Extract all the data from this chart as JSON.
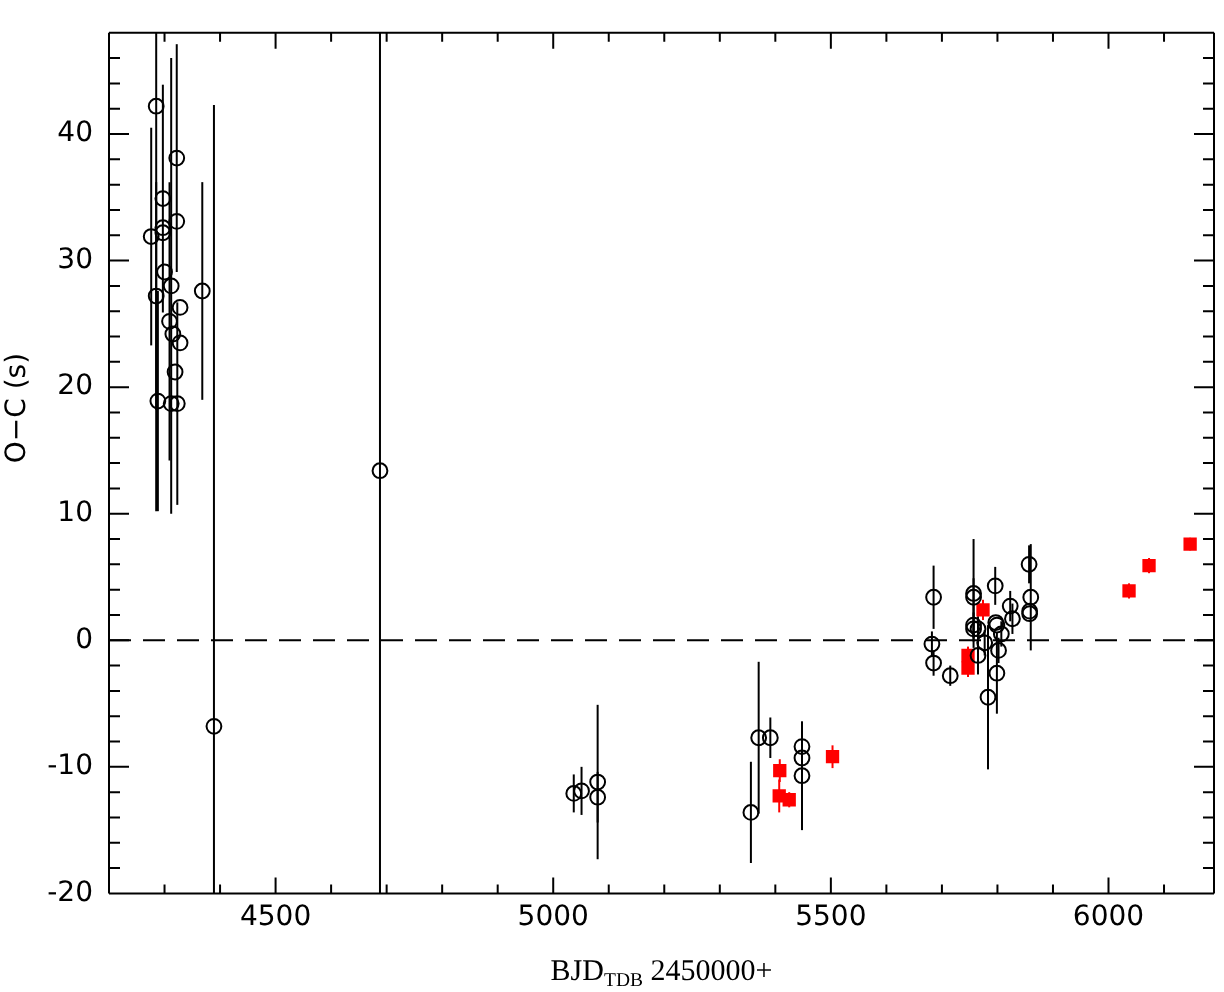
{
  "chart_data": {
    "type": "scatter",
    "xlabel": "BJD$_{TDB}$ 2450000+",
    "ylabel": "O−C (s)",
    "xlim": [
      4200,
      6190
    ],
    "ylim": [
      -20,
      48
    ],
    "xticks": [
      {
        "value": 4300,
        "label": null
      },
      {
        "value": 4400,
        "label": null
      },
      4500,
      {
        "value": 4600,
        "label": null
      },
      {
        "value": 4700,
        "label": null
      },
      {
        "value": 4800,
        "label": null
      },
      {
        "value": 4900,
        "label": null
      },
      5000,
      {
        "value": 5100,
        "label": null
      },
      {
        "value": 5200,
        "label": null
      },
      {
        "value": 5300,
        "label": null
      },
      {
        "value": 5400,
        "label": null
      },
      5500,
      {
        "value": 5600,
        "label": null
      },
      {
        "value": 5700,
        "label": null
      },
      {
        "value": 5800,
        "label": null
      },
      {
        "value": 5900,
        "label": null
      },
      6000,
      {
        "value": 6100,
        "label": null
      }
    ],
    "yticks": [
      -20,
      {
        "value": -18,
        "label": null
      },
      {
        "value": -16,
        "label": null
      },
      {
        "value": -14,
        "label": null
      },
      {
        "value": -12,
        "label": null
      },
      -10,
      {
        "value": -8,
        "label": null
      },
      {
        "value": -6,
        "label": null
      },
      {
        "value": -4,
        "label": null
      },
      {
        "value": -2,
        "label": null
      },
      0,
      {
        "value": 2,
        "label": null
      },
      {
        "value": 4,
        "label": null
      },
      {
        "value": 6,
        "label": null
      },
      {
        "value": 8,
        "label": null
      },
      10,
      {
        "value": 12,
        "label": null
      },
      {
        "value": 14,
        "label": null
      },
      {
        "value": 16,
        "label": null
      },
      {
        "value": 18,
        "label": null
      },
      20,
      {
        "value": 22,
        "label": null
      },
      {
        "value": 24,
        "label": null
      },
      {
        "value": 26,
        "label": null
      },
      {
        "value": 28,
        "label": null
      },
      30,
      {
        "value": 32,
        "label": null
      },
      {
        "value": 34,
        "label": null
      },
      {
        "value": 36,
        "label": null
      },
      {
        "value": 38,
        "label": null
      },
      40,
      {
        "value": 42,
        "label": null
      },
      {
        "value": 44,
        "label": null
      },
      {
        "value": 46,
        "label": null
      }
    ],
    "ref_lines": [
      {
        "axis": "y",
        "value": 0,
        "color": "#000000",
        "line_style": "dashed"
      }
    ],
    "series": [
      {
        "color": "#000000",
        "marker": "circle",
        "x": [
          4285,
          4322,
          4297,
          4322,
          4297,
          4297,
          4276,
          4300,
          4312,
          4285,
          4368,
          4328,
          4309,
          4315,
          4328,
          4319,
          4288,
          4312,
          4323,
          4389,
          4688,
          5037,
          5051,
          5080,
          5080,
          5356,
          5370,
          5391,
          5448,
          5448,
          5448,
          5685,
          5682,
          5685,
          5715,
          5757,
          5757,
          5757,
          5757,
          5765,
          5765,
          5777,
          5783,
          5796,
          5797,
          5799,
          5807,
          5802,
          5799,
          5823,
          5827,
          5857,
          5860,
          5858,
          5858
        ],
        "values": [
          42.2,
          38.1,
          34.9,
          33.1,
          32.6,
          32.2,
          31.9,
          29.1,
          28.0,
          27.2,
          27.6,
          26.3,
          25.2,
          24.2,
          23.5,
          21.2,
          18.9,
          18.7,
          18.7,
          -6.8,
          13.4,
          -12.1,
          -11.9,
          -11.2,
          -12.4,
          -13.6,
          -7.7,
          -7.7,
          -8.4,
          -9.3,
          -10.7,
          3.4,
          -0.3,
          -1.8,
          -2.8,
          3.7,
          3.4,
          1.2,
          0.9,
          0.9,
          -1.2,
          -0.2,
          -4.5,
          4.3,
          1.4,
          1.2,
          0.5,
          -0.8,
          -2.6,
          2.7,
          1.7,
          6.0,
          3.4,
          2.3,
          2.1
        ],
        "errors": [
          [
            10.2,
            48
          ],
          9,
          9,
          null,
          null,
          null,
          8.6,
          null,
          18,
          9,
          8.6,
          null,
          11,
          null,
          null,
          null,
          8.7,
          null,
          8,
          [
            -20,
            42.3
          ],
          [
            -20,
            48
          ],
          1.5,
          1.9,
          6.1,
          2,
          4,
          6,
          1.6,
          1.8,
          1.5,
          4.3,
          2.5,
          1,
          1,
          0.8,
          4.3,
          1.5,
          1,
          1,
          1,
          1.5,
          1,
          5.7,
          1.5,
          null,
          null,
          1,
          1,
          3.2,
          1.2,
          1.2,
          1.5,
          4.2,
          null,
          null
        ]
      },
      {
        "color": "#ff0000",
        "marker": "square",
        "x": [
          5408,
          5407,
          5425,
          5503,
          5747,
          5747,
          5774,
          6037,
          6073,
          6147
        ],
        "values": [
          -10.3,
          -12.3,
          -12.6,
          -9.2,
          -1.2,
          -2.2,
          2.4,
          3.9,
          5.9,
          7.6
        ],
        "errors": [
          0.9,
          1.3,
          0.6,
          0.9,
          0.7,
          0.7,
          0.8,
          0.6,
          0.6,
          0.5
        ]
      }
    ]
  }
}
